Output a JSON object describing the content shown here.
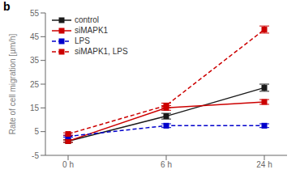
{
  "chart_data": {
    "type": "line",
    "categories": [
      "0 h",
      "6 h",
      "24 h"
    ],
    "series": [
      {
        "name": "control",
        "color": "#1a1a1a",
        "line_style": "solid",
        "marker": "square",
        "values": [
          1.0,
          11.5,
          23.5
        ],
        "errors": [
          0.5,
          1.2,
          1.5
        ]
      },
      {
        "name": "siMAPK1",
        "color": "#cc0000",
        "line_style": "solid",
        "marker": "square",
        "values": [
          1.0,
          15.0,
          17.5
        ],
        "errors": [
          0.5,
          1.0,
          1.0
        ]
      },
      {
        "name": "LPS",
        "color": "#0000cc",
        "line_style": "dashed",
        "marker": "square",
        "values": [
          3.0,
          7.5,
          7.5
        ],
        "errors": [
          0.3,
          0.8,
          0.8
        ]
      },
      {
        "name": "siMAPK1, LPS",
        "color": "#cc0000",
        "line_style": "dashed",
        "marker": "square",
        "values": [
          4.0,
          16.0,
          48.0
        ],
        "errors": [
          0.5,
          1.0,
          1.5
        ]
      }
    ],
    "ylabel": "Rate of cell migration [µm/h]",
    "ylim": [
      -5,
      55
    ],
    "yticks": [
      -5,
      5,
      15,
      25,
      35,
      45,
      55
    ],
    "legend": "upper left",
    "grid": false,
    "annotations": [
      "b"
    ]
  }
}
